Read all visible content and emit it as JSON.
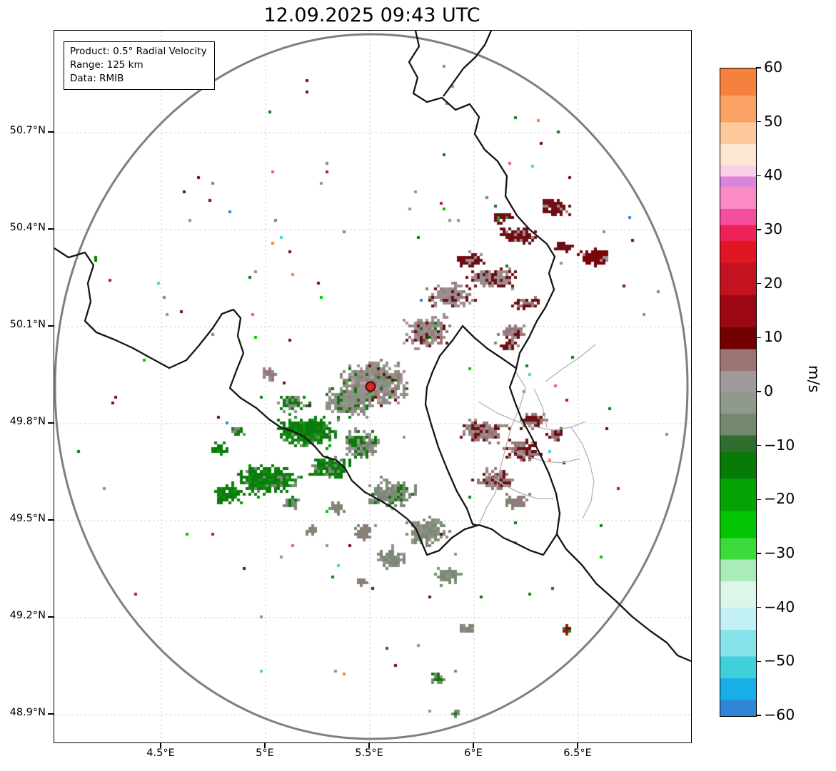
{
  "title": "12.09.2025 09:43 UTC",
  "info_box": {
    "lines": [
      "Product: 0.5° Radial Velocity",
      "Range: 125 km",
      "Data: RMIB"
    ]
  },
  "chart_data": {
    "type": "heatmap",
    "subtype": "weather-radar-ppi-radial-velocity",
    "title": "12.09.2025 09:43 UTC",
    "product": "0.5° Radial Velocity",
    "range_km": 125,
    "data_source": "RMIB",
    "units": "m/s",
    "x_ticks": [
      "4.5°E",
      "5°E",
      "5.5°E",
      "6°E",
      "6.5°E"
    ],
    "y_ticks": [
      "50.7°N",
      "50.4°N",
      "50.1°N",
      "49.8°N",
      "49.5°N",
      "49.2°N",
      "48.9°N"
    ],
    "x_range_deg_east": [
      3.99,
      7.04
    ],
    "y_range_deg_north": [
      48.82,
      51.01
    ],
    "grid": true,
    "range_ring": {
      "radius_km": 125,
      "color": "#808080"
    },
    "radar_site": {
      "approx_lon": "5.51°E",
      "approx_lat": "49.92°N",
      "marker_color": "#d62728"
    },
    "colorbar": {
      "label": "m/s",
      "min": -60,
      "max": 60,
      "ticks": [
        60,
        50,
        40,
        30,
        20,
        10,
        0,
        -10,
        -20,
        -30,
        -40,
        -50,
        -60
      ],
      "bands": [
        {
          "from": 60,
          "to": 55,
          "color": "#f5813e"
        },
        {
          "from": 55,
          "to": 50,
          "color": "#f9a263"
        },
        {
          "from": 50,
          "to": 46,
          "color": "#fcc89c"
        },
        {
          "from": 46,
          "to": 42,
          "color": "#fde7d2"
        },
        {
          "from": 42,
          "to": 40,
          "color": "#f9d0e8"
        },
        {
          "from": 40,
          "to": 38,
          "color": "#da84dc"
        },
        {
          "from": 38,
          "to": 34,
          "color": "#fb8cc3"
        },
        {
          "from": 34,
          "to": 31,
          "color": "#f44f9e"
        },
        {
          "from": 31,
          "to": 28,
          "color": "#ee2256"
        },
        {
          "from": 28,
          "to": 24,
          "color": "#e01722"
        },
        {
          "from": 24,
          "to": 18,
          "color": "#c31220"
        },
        {
          "from": 18,
          "to": 12,
          "color": "#9c0714"
        },
        {
          "from": 12,
          "to": 8,
          "color": "#720000"
        },
        {
          "from": 8,
          "to": 4,
          "color": "#9b7373"
        },
        {
          "from": 4,
          "to": 0,
          "color": "#a29a9a"
        },
        {
          "from": 0,
          "to": -4,
          "color": "#8f9a8c"
        },
        {
          "from": -4,
          "to": -8,
          "color": "#74886f"
        },
        {
          "from": -8,
          "to": -11,
          "color": "#2e6e2e"
        },
        {
          "from": -11,
          "to": -16,
          "color": "#077a07"
        },
        {
          "from": -16,
          "to": -22,
          "color": "#02a302"
        },
        {
          "from": -22,
          "to": -27,
          "color": "#03c503"
        },
        {
          "from": -27,
          "to": -31,
          "color": "#3bdb3b"
        },
        {
          "from": -31,
          "to": -35,
          "color": "#a9ecba"
        },
        {
          "from": -35,
          "to": -40,
          "color": "#dcf6e8"
        },
        {
          "from": -40,
          "to": -44,
          "color": "#c3f0f4"
        },
        {
          "from": -44,
          "to": -49,
          "color": "#86e3ea"
        },
        {
          "from": -49,
          "to": -53,
          "color": "#3fd0da"
        },
        {
          "from": -53,
          "to": -57,
          "color": "#18aee6"
        },
        {
          "from": -57,
          "to": -60,
          "color": "#2f86d6"
        }
      ]
    },
    "echo_regions": [
      {
        "area": "southwest and south-west of radar",
        "velocity_m_s": "-30 to -8 (toward radar)",
        "color": "greens"
      },
      {
        "area": "north-east quadrant streaks",
        "velocity_m_s": "+8 to +25 (away from radar)",
        "color": "dark red"
      },
      {
        "area": "around radar site",
        "velocity_m_s": "-8 to +8",
        "color": "gray"
      },
      {
        "area": "east near Luxembourg border",
        "velocity_m_s": "0 to +20",
        "color": "gray-red / maroon"
      },
      {
        "area": "south of 49.5°N scattered patches",
        "velocity_m_s": "-10 to 0",
        "color": "gray-green"
      }
    ]
  }
}
